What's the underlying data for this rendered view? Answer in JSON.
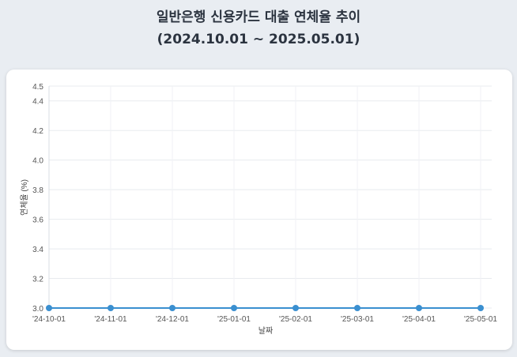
{
  "title_line1": "일반은행 신용카드 대출 연체율 추이",
  "title_line2": "(2024.10.01 ~ 2025.05.01)",
  "chart_data": {
    "type": "line",
    "title": "일반은행 신용카드 대출 연체율 추이 (2024.10.01 ~ 2025.05.01)",
    "xlabel": "날짜",
    "ylabel": "연체율 (%)",
    "categories": [
      "'24-10-01",
      "'24-11-01",
      "'24-12-01",
      "'25-01-01",
      "'25-02-01",
      "'25-03-01",
      "'25-04-01",
      "'25-05-01"
    ],
    "values": [
      3.0,
      3.0,
      3.0,
      3.0,
      3.0,
      3.0,
      3.0,
      3.0
    ],
    "ylim": [
      3.0,
      4.5
    ],
    "yticks": [
      "3.0",
      "3.2",
      "3.4",
      "3.6",
      "3.8",
      "4.0",
      "4.2",
      "4.4",
      "4.5"
    ],
    "grid": true,
    "color": "#3a8fd0"
  }
}
